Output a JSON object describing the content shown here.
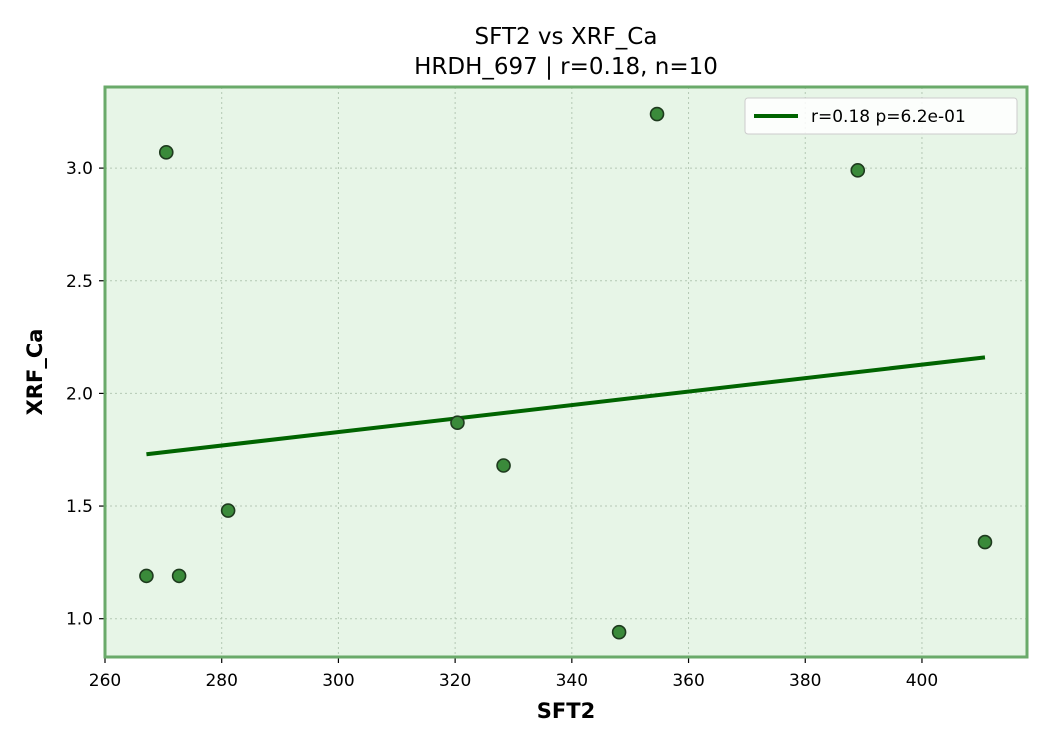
{
  "title_line1": "SFT2 vs XRF_Ca",
  "title_line2": "HRDH_697 | r=0.18, n=10",
  "colors": {
    "plot_bg": "#e7f5e7",
    "frame": "#6aaa6a",
    "point_fill": "#3a8a3a",
    "point_edge": "#1e3a1e",
    "fit_line": "#006400",
    "grid": "#b4c8b4"
  },
  "chart_data": {
    "type": "scatter",
    "xlabel": "SFT2",
    "ylabel": "XRF_Ca",
    "xlim": [
      260,
      418
    ],
    "ylim": [
      0.83,
      3.36
    ],
    "xticks": [
      260,
      280,
      300,
      320,
      340,
      360,
      380,
      400
    ],
    "xtick_labels": [
      "260",
      "280",
      "300",
      "320",
      "340",
      "360",
      "380",
      "400"
    ],
    "yticks": [
      1.0,
      1.5,
      2.0,
      2.5,
      3.0
    ],
    "ytick_labels": [
      "1.0",
      "1.5",
      "2.0",
      "2.5",
      "3.0"
    ],
    "grid": true,
    "legend_position": "top-right",
    "points": [
      {
        "x": 267.1,
        "y": 1.19
      },
      {
        "x": 270.5,
        "y": 3.07
      },
      {
        "x": 272.7,
        "y": 1.19
      },
      {
        "x": 281.1,
        "y": 1.48
      },
      {
        "x": 320.4,
        "y": 1.87
      },
      {
        "x": 328.3,
        "y": 1.68
      },
      {
        "x": 348.1,
        "y": 0.94
      },
      {
        "x": 354.6,
        "y": 3.24
      },
      {
        "x": 389.0,
        "y": 2.99
      },
      {
        "x": 410.8,
        "y": 1.34
      }
    ],
    "fit_line": {
      "label": "r=0.18  p=6.2e-01",
      "x": [
        267.1,
        410.8
      ],
      "y": [
        1.73,
        2.16
      ]
    }
  }
}
